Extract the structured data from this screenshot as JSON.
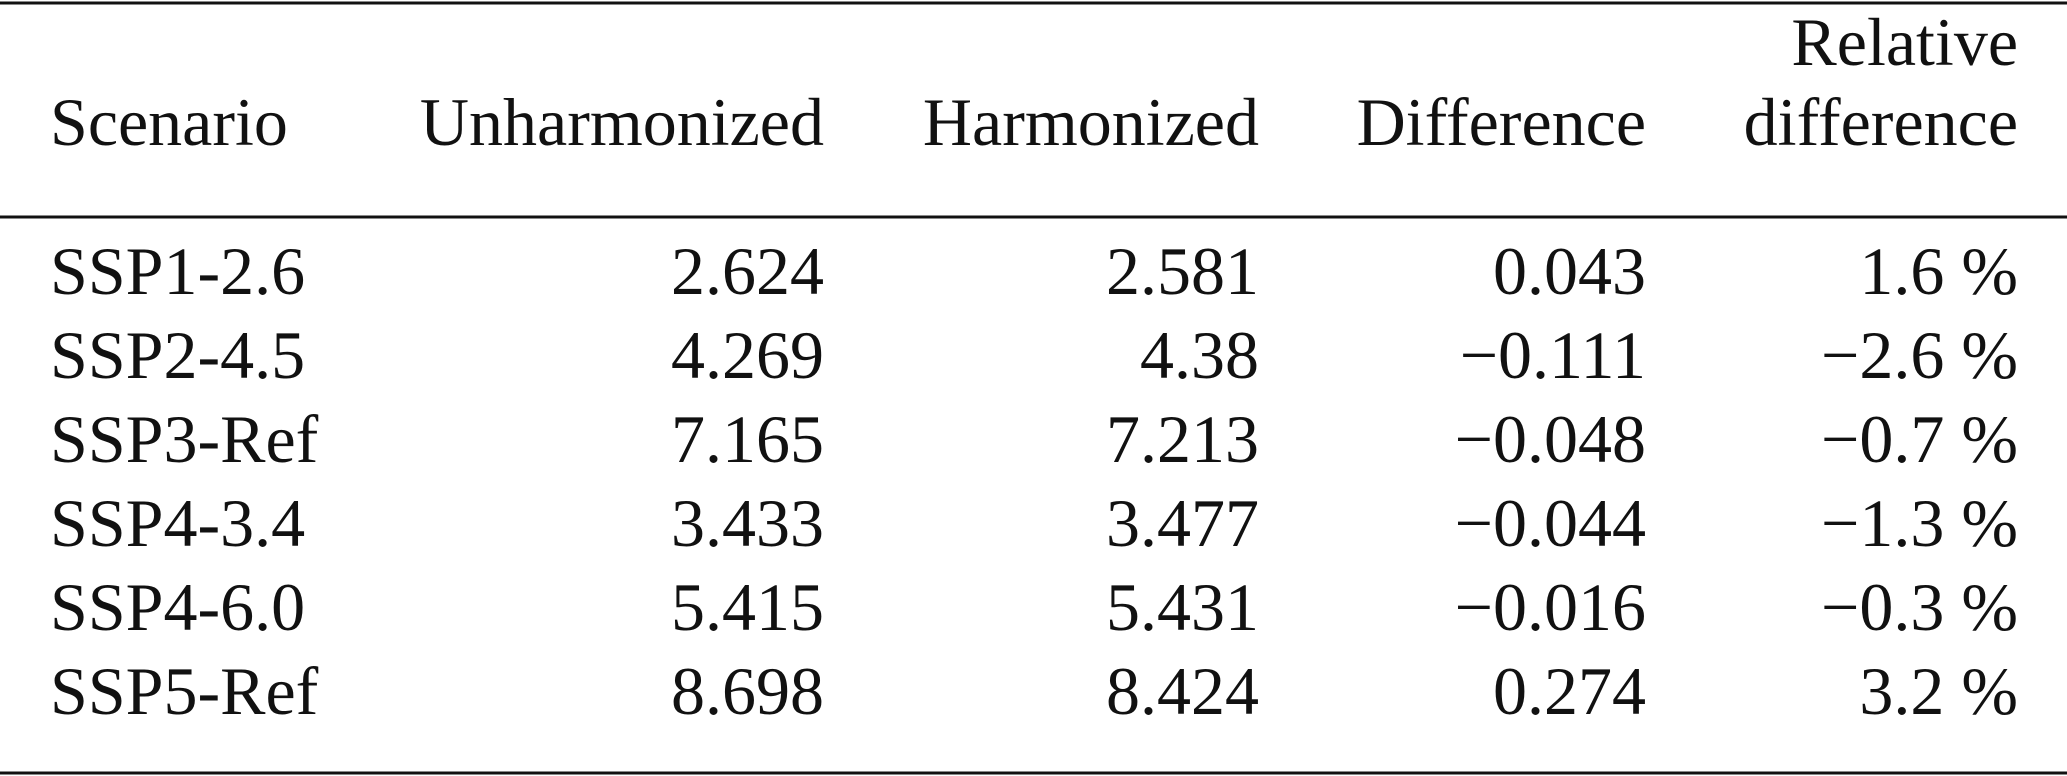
{
  "table": {
    "header": [
      "Scenario",
      "Unharmonized",
      "Harmonized",
      "Difference",
      [
        "Relative",
        "difference"
      ]
    ],
    "rows": [
      [
        "SSP1-2.6",
        "2.624",
        "2.581",
        "0.043",
        "1.6 %"
      ],
      [
        "SSP2-4.5",
        "4.269",
        "4.38",
        "−0.111",
        "−2.6 %"
      ],
      [
        "SSP3-Ref",
        "7.165",
        "7.213",
        "−0.048",
        "−0.7 %"
      ],
      [
        "SSP4-3.4",
        "3.433",
        "3.477",
        "−0.044",
        "−1.3 %"
      ],
      [
        "SSP4-6.0",
        "5.415",
        "5.431",
        "−0.016",
        "−0.3 %"
      ],
      [
        "SSP5-Ref",
        "8.698",
        "8.424",
        "0.274",
        "3.2 %"
      ]
    ]
  }
}
